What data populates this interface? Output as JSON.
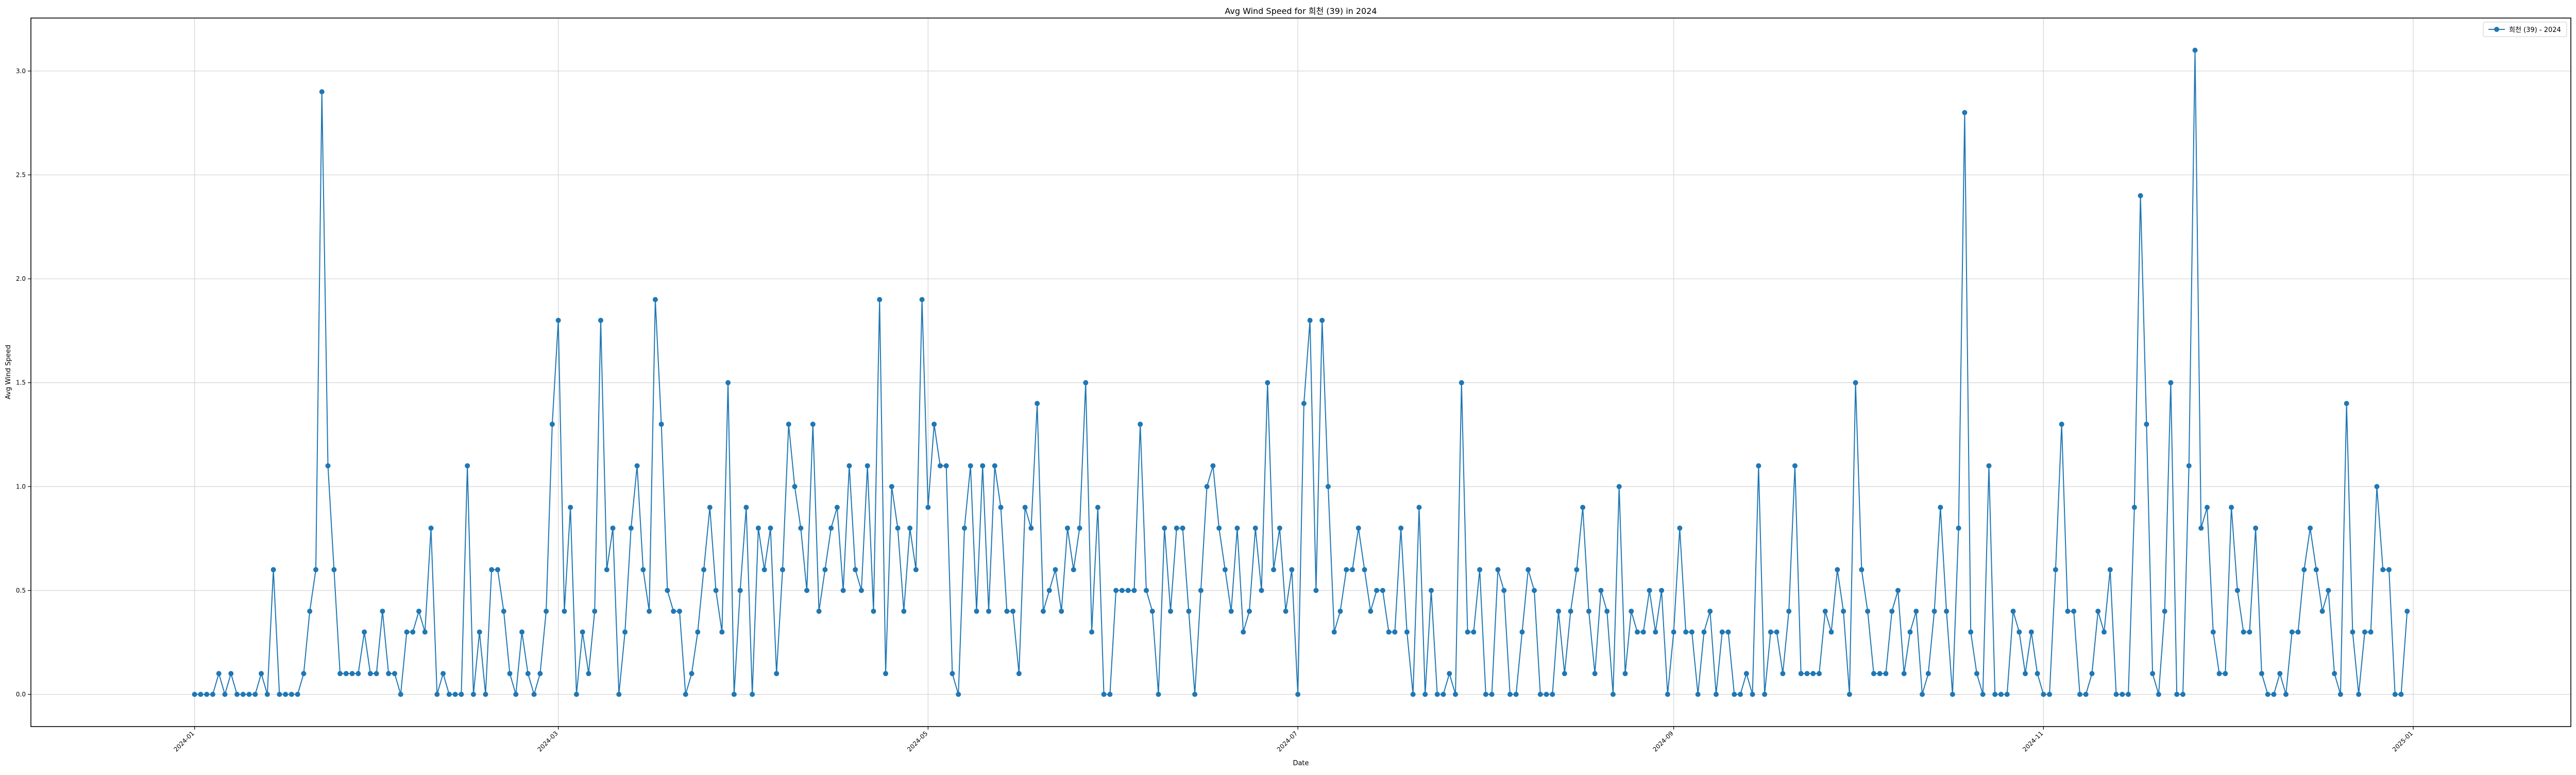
{
  "chart_data": {
    "type": "line",
    "title": "Avg Wind Speed for 희천 (39) in 2024",
    "xlabel": "Date",
    "ylabel": "Avg Wind Speed",
    "x_start": "2024-01-01",
    "x_range": [
      "2023-12-05",
      "2025-01-27"
    ],
    "ylim": [
      -0.155,
      3.255
    ],
    "x_ticks": [
      "2024-01",
      "2024-03",
      "2024-05",
      "2024-07",
      "2024-09",
      "2024-11",
      "2025-01"
    ],
    "y_ticks": [
      "0.0",
      "0.5",
      "1.0",
      "1.5",
      "2.0",
      "2.5",
      "3.0"
    ],
    "grid": true,
    "legend_position": "top-right",
    "series": [
      {
        "name": "희천 (39) - 2024",
        "color": "#1f77b4",
        "marker": "circle",
        "values": [
          0.0,
          0.0,
          0.0,
          0.0,
          0.1,
          0.0,
          0.1,
          0.0,
          0.0,
          0.0,
          0.0,
          0.1,
          0.0,
          0.6,
          0.0,
          0.0,
          0.0,
          0.0,
          0.1,
          0.4,
          0.6,
          2.9,
          1.1,
          0.6,
          0.1,
          0.1,
          0.1,
          0.1,
          0.3,
          0.1,
          0.1,
          0.4,
          0.1,
          0.1,
          0.0,
          0.3,
          0.3,
          0.4,
          0.3,
          0.8,
          0.0,
          0.1,
          0.0,
          0.0,
          0.0,
          1.1,
          0.0,
          0.3,
          0.0,
          0.6,
          0.6,
          0.4,
          0.1,
          0.0,
          0.3,
          0.1,
          0.0,
          0.1,
          0.4,
          1.3,
          1.8,
          0.4,
          0.9,
          0.0,
          0.3,
          0.1,
          0.4,
          1.8,
          0.6,
          0.8,
          0.0,
          0.3,
          0.8,
          1.1,
          0.6,
          0.4,
          1.9,
          1.3,
          0.5,
          0.4,
          0.4,
          0.0,
          0.1,
          0.3,
          0.6,
          0.9,
          0.5,
          0.3,
          1.5,
          0.0,
          0.5,
          0.9,
          0.0,
          0.8,
          0.6,
          0.8,
          0.1,
          0.6,
          1.3,
          1.0,
          0.8,
          0.5,
          1.3,
          0.4,
          0.6,
          0.8,
          0.9,
          0.5,
          1.1,
          0.6,
          0.5,
          1.1,
          0.4,
          1.9,
          0.1,
          1.0,
          0.8,
          0.4,
          0.8,
          0.6,
          1.9,
          0.9,
          1.3,
          1.1,
          1.1,
          0.1,
          0.0,
          0.8,
          1.1,
          0.4,
          1.1,
          0.4,
          1.1,
          0.9,
          0.4,
          0.4,
          0.1,
          0.9,
          0.8,
          1.4,
          0.4,
          0.5,
          0.6,
          0.4,
          0.8,
          0.6,
          0.8,
          1.5,
          0.3,
          0.9,
          0.0,
          0.0,
          0.5,
          0.5,
          0.5,
          0.5,
          1.3,
          0.5,
          0.4,
          0.0,
          0.8,
          0.4,
          0.8,
          0.8,
          0.4,
          0.0,
          0.5,
          1.0,
          1.1,
          0.8,
          0.6,
          0.4,
          0.8,
          0.3,
          0.4,
          0.8,
          0.5,
          1.5,
          0.6,
          0.8,
          0.4,
          0.6,
          0.0,
          1.4,
          1.8,
          0.5,
          1.8,
          1.0,
          0.3,
          0.4,
          0.6,
          0.6,
          0.8,
          0.6,
          0.4,
          0.5,
          0.5,
          0.3,
          0.3,
          0.8,
          0.3,
          0.0,
          0.9,
          0.0,
          0.5,
          0.0,
          0.0,
          0.1,
          0.0,
          1.5,
          0.3,
          0.3,
          0.6,
          0.0,
          0.0,
          0.6,
          0.5,
          0.0,
          0.0,
          0.3,
          0.6,
          0.5,
          0.0,
          0.0,
          0.0,
          0.4,
          0.1,
          0.4,
          0.6,
          0.9,
          0.4,
          0.1,
          0.5,
          0.4,
          0.0,
          1.0,
          0.1,
          0.4,
          0.3,
          0.3,
          0.5,
          0.3,
          0.5,
          0.0,
          0.3,
          0.8,
          0.3,
          0.3,
          0.0,
          0.3,
          0.4,
          0.0,
          0.3,
          0.3,
          0.0,
          0.0,
          0.1,
          0.0,
          1.1,
          0.0,
          0.3,
          0.3,
          0.1,
          0.4,
          1.1,
          0.1,
          0.1,
          0.1,
          0.1,
          0.4,
          0.3,
          0.6,
          0.4,
          0.0,
          1.5,
          0.6,
          0.4,
          0.1,
          0.1,
          0.1,
          0.4,
          0.5,
          0.1,
          0.3,
          0.4,
          0.0,
          0.1,
          0.4,
          0.9,
          0.4,
          0.0,
          0.8,
          2.8,
          0.3,
          0.1,
          0.0,
          1.1,
          0.0,
          0.0,
          0.0,
          0.4,
          0.3,
          0.1,
          0.3,
          0.1,
          0.0,
          0.0,
          0.6,
          1.3,
          0.4,
          0.4,
          0.0,
          0.0,
          0.1,
          0.4,
          0.3,
          0.6,
          0.0,
          0.0,
          0.0,
          0.9,
          2.4,
          1.3,
          0.1,
          0.0,
          0.4,
          1.5,
          0.0,
          0.0,
          1.1,
          3.1,
          0.8,
          0.9,
          0.3,
          0.1,
          0.1,
          0.9,
          0.5,
          0.3,
          0.3,
          0.8,
          0.1,
          0.0,
          0.0,
          0.1,
          0.0,
          0.3,
          0.3,
          0.6,
          0.8,
          0.6,
          0.4,
          0.5,
          0.1,
          0.0,
          1.4,
          0.3,
          0.0,
          0.3,
          0.3,
          1.0,
          0.6,
          0.6,
          0.0,
          0.0,
          0.4
        ]
      }
    ]
  }
}
